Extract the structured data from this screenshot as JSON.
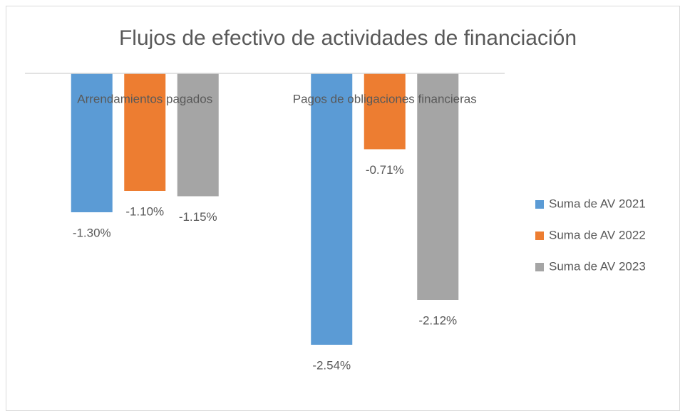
{
  "chart_data": {
    "type": "bar",
    "title": "Flujos de efectivo de actividades de financiación",
    "categories": [
      "Arrendamientos pagados",
      "Pagos de obligaciones financieras"
    ],
    "series": [
      {
        "name": "Suma de AV 2021",
        "color": "#5b9bd5",
        "values": [
          -1.3,
          -2.54
        ],
        "value_labels": [
          "-1.30%",
          "-2.54%"
        ]
      },
      {
        "name": "Suma de AV 2022",
        "color": "#ed7d31",
        "values": [
          -1.1,
          -0.71
        ],
        "value_labels": [
          "-1.10%",
          "-0.71%"
        ]
      },
      {
        "name": "Suma de AV 2023",
        "color": "#a5a5a5",
        "values": [
          -1.15,
          -2.12
        ],
        "value_labels": [
          "-1.15%",
          "-2.12%"
        ]
      }
    ],
    "legend": "right"
  }
}
